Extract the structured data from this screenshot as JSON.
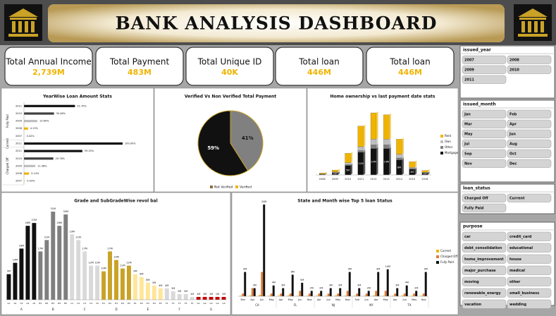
{
  "header": {
    "title": "BANK ANALYSIS DASHBOARD"
  },
  "kpis": [
    {
      "label": "Total Annual Income",
      "value": "2,739M"
    },
    {
      "label": "Total Payment",
      "value": "483M"
    },
    {
      "label": "Total Unique ID",
      "value": "40K"
    },
    {
      "label": "Total loan",
      "value": "446M"
    },
    {
      "label": "Total loan",
      "value": "446M"
    }
  ],
  "slicers": [
    {
      "title": "issued_year",
      "items": [
        "2007",
        "2008",
        "2009",
        "2010",
        "2011"
      ]
    },
    {
      "title": "issued_month",
      "items": [
        "Jan",
        "Feb",
        "Mar",
        "Apr",
        "May",
        "Jun",
        "Jul",
        "Aug",
        "Sep",
        "Oct",
        "Nov",
        "Dec"
      ]
    },
    {
      "title": "loan_status",
      "items": [
        "Charged Off",
        "Current",
        "Fully Paid"
      ]
    },
    {
      "title": "purpose",
      "items": [
        "car",
        "credit_card",
        "debt_consolidation",
        "educational",
        "home_improvement",
        "house",
        "major_purchase",
        "medical",
        "moving",
        "other",
        "renewable_energy",
        "small_business",
        "vacation",
        "wedding"
      ]
    }
  ],
  "chart_data": [
    {
      "type": "barh",
      "title": "YearWise Loan Amount Stats",
      "groups": [
        {
          "name": "Fully Paid",
          "categories": [
            "2011",
            "2010",
            "2009",
            "2008",
            "2007"
          ],
          "values": [
            51.7,
            30.46,
            13.6,
            4.13,
            0.42
          ],
          "value_labels": [
            "51.70%",
            "30.46%",
            "13.60%",
            "4.13%",
            "0.42%"
          ],
          "colors": [
            "#111111",
            "#404040",
            "#bfbfbf",
            "#f0b400",
            "#ffe699"
          ]
        },
        {
          "name": "Current",
          "categories": [
            "2011"
          ],
          "values": [
            100
          ],
          "value_labels": [
            "100.00%"
          ],
          "colors": [
            "#111111"
          ]
        },
        {
          "name": "Charged Off",
          "categories": [
            "2011",
            "2010",
            "2009",
            "2008",
            "2007"
          ],
          "values": [
            59.2,
            29.76,
            11.48,
            5.14,
            0.93
          ],
          "value_labels": [
            "59.20%",
            "29.76%",
            "11.48%",
            "5.14%",
            "0.93%"
          ],
          "colors": [
            "#111111",
            "#404040",
            "#bfbfbf",
            "#f0b400",
            "#ffe699"
          ]
        }
      ]
    },
    {
      "type": "pie",
      "title": "Verified  Vs Non Verified  Total Payment",
      "categories": [
        "Not Verified",
        "Verified"
      ],
      "values": [
        41,
        59
      ],
      "value_labels": [
        "41%",
        "59%"
      ],
      "colors": [
        "#808080",
        "#111111"
      ],
      "legend": "bottom"
    },
    {
      "type": "stacked",
      "title": "Home ownership vs last payment date stats",
      "categories": [
        "2008",
        "2009",
        "2010",
        "2011",
        "2012",
        "2013",
        "2014",
        "2015",
        "2016"
      ],
      "series": [
        {
          "name": "Mortgage",
          "color": "#111111",
          "values": [
            0.3,
            1,
            5,
            12,
            14,
            14,
            8,
            3,
            1
          ],
          "value_labels": [
            "0M",
            "1M",
            "5M",
            "12M",
            "14M",
            "14M",
            "8M",
            "3M",
            "1M"
          ]
        },
        {
          "name": "Other",
          "color": "#7f7f7f",
          "values": [
            0.1,
            0.3,
            0.5,
            1,
            2,
            2,
            1,
            0.5,
            0.2
          ]
        },
        {
          "name": "Own",
          "color": "#bfbfbf",
          "values": [
            0.1,
            0.3,
            1,
            2,
            3,
            3,
            2,
            0.5,
            0.2
          ]
        },
        {
          "name": "Rent",
          "color": "#f0b400",
          "values": [
            0.5,
            1,
            5,
            11,
            14,
            13,
            8,
            3,
            1
          ]
        }
      ],
      "legend": "right"
    },
    {
      "type": "bar",
      "title": "Grade and SubGradeWise revol bal",
      "groups": [
        {
          "name": "A",
          "color": "#111111",
          "categories": [
            "A1",
            "A2",
            "A3",
            "A4",
            "A5"
          ],
          "values": [
            9,
            13,
            18,
            26,
            27
          ],
          "value_labels": [
            "9M",
            "13M",
            "18M",
            "26M",
            "27M"
          ]
        },
        {
          "name": "B",
          "color": "#7f7f7f",
          "categories": [
            "B1",
            "B2",
            "B3",
            "B4",
            "B5"
          ],
          "values": [
            17,
            21,
            31,
            26,
            30
          ],
          "value_labels": [
            "17M",
            "21M",
            "31M",
            "26M",
            "30M"
          ]
        },
        {
          "name": "C",
          "color": "#d9d9d9",
          "categories": [
            "C1",
            "C2",
            "C3",
            "C4",
            "C5"
          ],
          "values": [
            23,
            21,
            17,
            12,
            12
          ],
          "value_labels": [
            "23M",
            "21M",
            "17M",
            "12M",
            "12M"
          ]
        },
        {
          "name": "D",
          "color": "#c9a227",
          "categories": [
            "D1",
            "D2",
            "D3",
            "D4",
            "D5"
          ],
          "values": [
            10,
            17,
            14,
            11,
            12
          ],
          "value_labels": [
            "10M",
            "17M",
            "14M",
            "11M",
            "12M"
          ]
        },
        {
          "name": "E",
          "color": "#ffe699",
          "categories": [
            "E1",
            "E2",
            "E3",
            "E4",
            "E5"
          ],
          "values": [
            9,
            8,
            6,
            5,
            4
          ],
          "value_labels": [
            "9M",
            "8M",
            "6M",
            "5M",
            "4M"
          ]
        },
        {
          "name": "F",
          "color": "#d9d9d9",
          "categories": [
            "F1",
            "F2",
            "F3",
            "F4",
            "F5"
          ],
          "values": [
            4,
            3,
            2,
            2,
            1
          ],
          "value_labels": [
            "4M",
            "3M",
            "2M",
            "2M",
            "1M"
          ]
        },
        {
          "name": "G",
          "color": "#c00000",
          "categories": [
            "G1",
            "G2",
            "G3",
            "G4",
            "G5"
          ],
          "values": [
            1,
            1,
            1,
            1,
            1
          ],
          "value_labels": [
            "1M",
            "1M",
            "1M",
            "1M",
            "1M"
          ]
        }
      ]
    },
    {
      "type": "grouped",
      "title": "State and Month wise Top 5 loan Status",
      "groups": [
        {
          "name": "CA",
          "categories": [
            "Mar",
            "Apr",
            "Jun",
            "May"
          ]
        },
        {
          "name": "FL",
          "categories": [
            "Apr",
            "May",
            "Jun",
            "Nov"
          ]
        },
        {
          "name": "NJ",
          "categories": [
            "Apr",
            "Jun",
            "May",
            "Nov"
          ]
        },
        {
          "name": "NY",
          "categories": [
            "Feb",
            "Jun",
            "Apr",
            "May"
          ]
        },
        {
          "name": "TX",
          "categories": [
            "Apr",
            "Jun",
            "May",
            "Nov"
          ]
        }
      ],
      "series": [
        {
          "name": "Current",
          "color": "#f0b400",
          "values": [
            0.2,
            0.3,
            0.5,
            0.2,
            0.2,
            0.3,
            0.2,
            0.2,
            0.2,
            0.2,
            0.3,
            0.2,
            0.2,
            0.2,
            0.3,
            0.2,
            0.2,
            0.3,
            0.2,
            0.2
          ]
        },
        {
          "name": "Charged Off",
          "color": "#e07b39",
          "values": [
            1,
            3,
            9,
            1,
            1,
            1,
            2,
            1,
            1,
            1,
            1,
            2,
            1,
            1,
            2,
            2,
            1,
            1,
            1,
            1
          ]
        },
        {
          "name": "Fully Paid",
          "color": "#111111",
          "values": [
            9,
            3,
            34,
            4,
            3,
            8,
            5,
            2,
            2,
            3,
            3,
            9,
            3,
            2,
            9,
            10,
            3,
            4,
            2,
            9
          ],
          "value_labels": [
            "9M",
            "3M",
            "34M",
            "4M",
            "3M",
            "8M",
            "5M",
            "2M",
            "2M",
            "3M",
            "3M",
            "9M",
            "3M",
            "2M",
            "9M",
            "10M",
            "3M",
            "4M",
            "2M",
            "9M"
          ]
        }
      ],
      "legend": "right"
    }
  ]
}
